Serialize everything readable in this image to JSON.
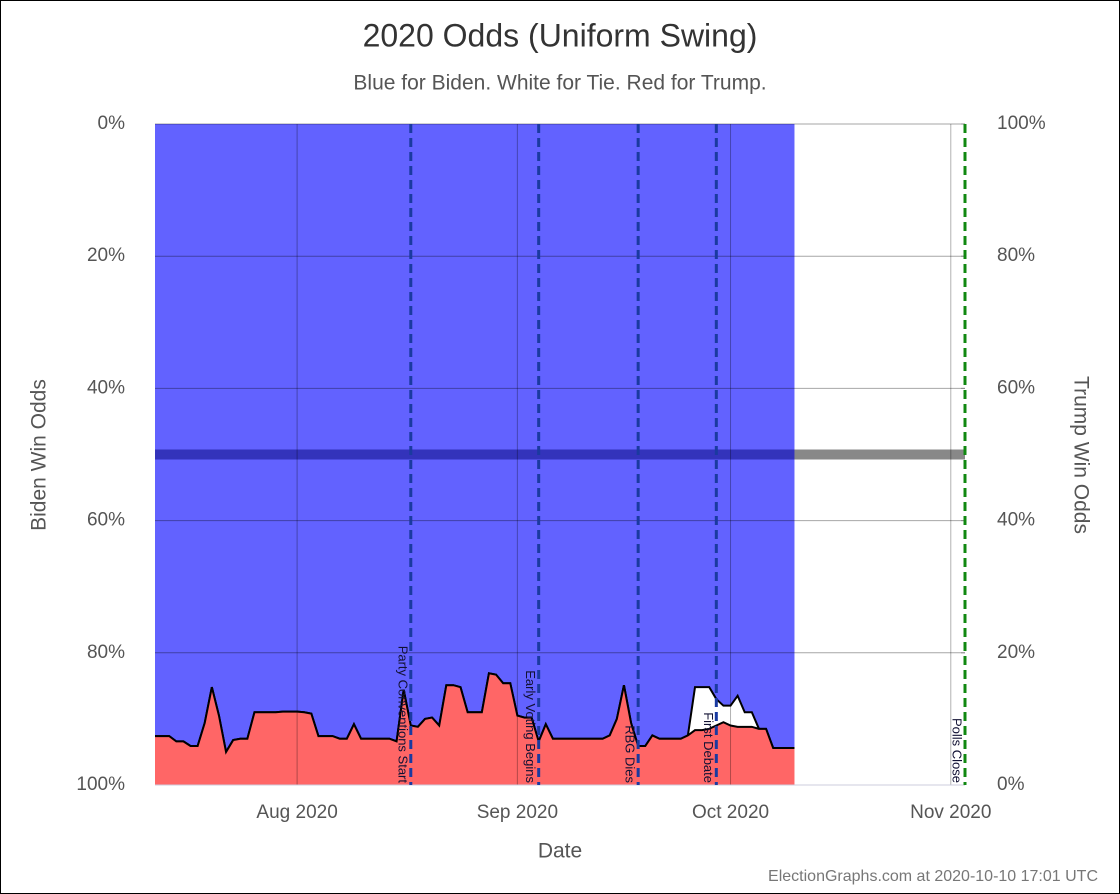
{
  "chart_data": {
    "type": "odds-area",
    "title": "2020 Odds (Uniform Swing)",
    "subtitle": "Blue for Biden. White for Tie. Red for Trump.",
    "x_label": "Date",
    "y_label": "Biden Win Odds",
    "y2_label": "Trump Win Odds",
    "footer": "ElectionGraphs.com at 2020-10-10 17:01 UTC",
    "xlim": [
      "2020-07-12",
      "2020-11-03"
    ],
    "xticks": [
      {
        "value": "2020-08-01",
        "label": "Aug 2020"
      },
      {
        "value": "2020-09-01",
        "label": "Sep 2020"
      },
      {
        "value": "2020-10-01",
        "label": "Oct 2020"
      },
      {
        "value": "2020-11-01",
        "label": "Nov 2020"
      }
    ],
    "ylim": [
      0,
      100
    ],
    "y_inverted": true,
    "yticks": [
      {
        "value": 0,
        "label": "0%"
      },
      {
        "value": 20,
        "label": "20%"
      },
      {
        "value": 40,
        "label": "40%"
      },
      {
        "value": 60,
        "label": "60%"
      },
      {
        "value": 80,
        "label": "80%"
      },
      {
        "value": 100,
        "label": "100%"
      }
    ],
    "y2lim": [
      0,
      100
    ],
    "y2ticks": [
      {
        "value": 0,
        "label": "0%"
      },
      {
        "value": 20,
        "label": "20%"
      },
      {
        "value": 40,
        "label": "40%"
      },
      {
        "value": 60,
        "label": "60%"
      },
      {
        "value": 80,
        "label": "80%"
      },
      {
        "value": 100,
        "label": "100%"
      }
    ],
    "grid": true,
    "midline": 50,
    "x": [
      "2020-07-12",
      "2020-07-13",
      "2020-07-14",
      "2020-07-15",
      "2020-07-16",
      "2020-07-17",
      "2020-07-18",
      "2020-07-19",
      "2020-07-20",
      "2020-07-21",
      "2020-07-22",
      "2020-07-23",
      "2020-07-24",
      "2020-07-25",
      "2020-07-26",
      "2020-07-27",
      "2020-07-28",
      "2020-07-29",
      "2020-07-30",
      "2020-07-31",
      "2020-08-01",
      "2020-08-02",
      "2020-08-03",
      "2020-08-04",
      "2020-08-05",
      "2020-08-06",
      "2020-08-07",
      "2020-08-08",
      "2020-08-09",
      "2020-08-10",
      "2020-08-11",
      "2020-08-12",
      "2020-08-13",
      "2020-08-14",
      "2020-08-15",
      "2020-08-16",
      "2020-08-17",
      "2020-08-18",
      "2020-08-19",
      "2020-08-20",
      "2020-08-21",
      "2020-08-22",
      "2020-08-23",
      "2020-08-24",
      "2020-08-25",
      "2020-08-26",
      "2020-08-27",
      "2020-08-28",
      "2020-08-29",
      "2020-08-30",
      "2020-08-31",
      "2020-09-01",
      "2020-09-02",
      "2020-09-03",
      "2020-09-04",
      "2020-09-05",
      "2020-09-06",
      "2020-09-07",
      "2020-09-08",
      "2020-09-09",
      "2020-09-10",
      "2020-09-11",
      "2020-09-12",
      "2020-09-13",
      "2020-09-14",
      "2020-09-15",
      "2020-09-16",
      "2020-09-17",
      "2020-09-18",
      "2020-09-19",
      "2020-09-20",
      "2020-09-21",
      "2020-09-22",
      "2020-09-23",
      "2020-09-24",
      "2020-09-25",
      "2020-09-26",
      "2020-09-27",
      "2020-09-28",
      "2020-09-29",
      "2020-09-30",
      "2020-10-01",
      "2020-10-02",
      "2020-10-03",
      "2020-10-04",
      "2020-10-05",
      "2020-10-06",
      "2020-10-07",
      "2020-10-08",
      "2020-10-09",
      "2020-10-10"
    ],
    "series": [
      {
        "color": "#6262ff",
        "values": [
          92.6,
          92.6,
          92.6,
          93.4,
          93.4,
          94.1,
          94.1,
          90.6,
          85.2,
          89.5,
          95.0,
          93.2,
          93.0,
          93.0,
          89.0,
          89.0,
          89.0,
          89.0,
          88.9,
          88.9,
          88.9,
          89.0,
          89.2,
          92.6,
          92.6,
          92.6,
          93.0,
          93.0,
          90.8,
          93.0,
          93.0,
          93.0,
          93.0,
          93.0,
          93.4,
          85.6,
          91.0,
          91.2,
          90.0,
          89.8,
          91.0,
          84.9,
          84.9,
          85.2,
          89.0,
          89.0,
          89.0,
          83.1,
          83.3,
          84.6,
          84.6,
          89.5,
          89.8,
          89.8,
          93.4,
          90.8,
          93.0,
          93.0,
          93.0,
          93.0,
          93.0,
          93.0,
          93.0,
          93.0,
          92.5,
          90.0,
          84.9,
          90.6,
          94.1,
          94.1,
          92.5,
          93.0,
          93.0,
          93.0,
          93.0,
          92.5,
          85.2,
          85.2,
          85.2,
          87.0,
          88.0,
          88.0,
          86.5,
          89.0,
          89.0,
          91.5,
          91.5,
          94.4,
          94.4,
          94.4,
          94.4
        ]
      },
      {
        "color": "#ff6666",
        "axis": "y2",
        "values": [
          7.4,
          7.4,
          7.4,
          6.6,
          6.6,
          5.9,
          5.9,
          9.4,
          14.8,
          10.5,
          5.0,
          6.8,
          7.0,
          7.0,
          11.0,
          11.0,
          11.0,
          11.0,
          11.1,
          11.1,
          11.1,
          11.0,
          10.8,
          7.4,
          7.4,
          7.4,
          7.0,
          7.0,
          9.2,
          7.0,
          7.0,
          7.0,
          7.0,
          7.0,
          6.6,
          14.4,
          9.0,
          8.8,
          10.0,
          10.2,
          9.0,
          15.1,
          15.1,
          14.8,
          11.0,
          11.0,
          11.0,
          16.9,
          16.7,
          15.4,
          15.4,
          10.5,
          10.2,
          10.2,
          6.6,
          9.2,
          7.0,
          7.0,
          7.0,
          7.0,
          7.0,
          7.0,
          7.0,
          7.0,
          7.5,
          10.0,
          15.1,
          9.4,
          5.9,
          5.9,
          7.5,
          7.0,
          7.0,
          7.0,
          7.0,
          7.5,
          8.3,
          8.3,
          8.5,
          9.0,
          9.5,
          9.0,
          8.8,
          8.8,
          8.8,
          8.5,
          8.5,
          5.6,
          5.6,
          5.6,
          5.6
        ]
      }
    ],
    "events": [
      {
        "date": "2020-08-17",
        "label": "Party Conventions Start",
        "color": "#1a3aa0"
      },
      {
        "date": "2020-09-04",
        "label": "Early Voting Begins",
        "color": "#1a3aa0"
      },
      {
        "date": "2020-09-18",
        "label": "RBG Dies",
        "color": "#1a3aa0"
      },
      {
        "date": "2020-09-29",
        "label": "First Debate",
        "color": "#1a3aa0"
      },
      {
        "date": "2020-11-03",
        "label": "Polls Close",
        "color": "#118811"
      }
    ]
  }
}
